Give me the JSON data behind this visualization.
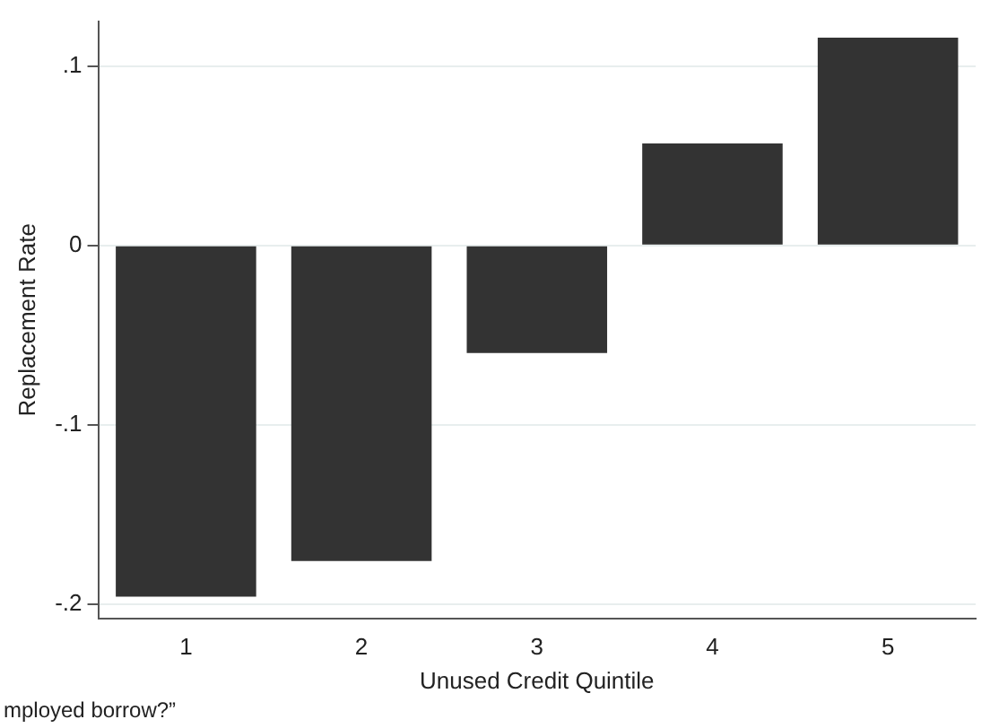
{
  "chart_data": {
    "type": "bar",
    "xlabel": "Unused Credit Quintile",
    "ylabel": "Replacement Rate",
    "categories": [
      "1",
      "2",
      "3",
      "4",
      "5"
    ],
    "values": [
      -0.196,
      -0.176,
      -0.06,
      0.057,
      0.116
    ],
    "color": "#333333",
    "ylim": [
      -0.208,
      0.125
    ],
    "yticks": [
      {
        "value": -0.2,
        "label": "-.2"
      },
      {
        "value": -0.1,
        "label": "-.1"
      },
      0,
      {
        "value": 0.1,
        "label": ".1"
      }
    ],
    "grid": "y",
    "annotations": [
      "mployed borrow?”"
    ]
  }
}
